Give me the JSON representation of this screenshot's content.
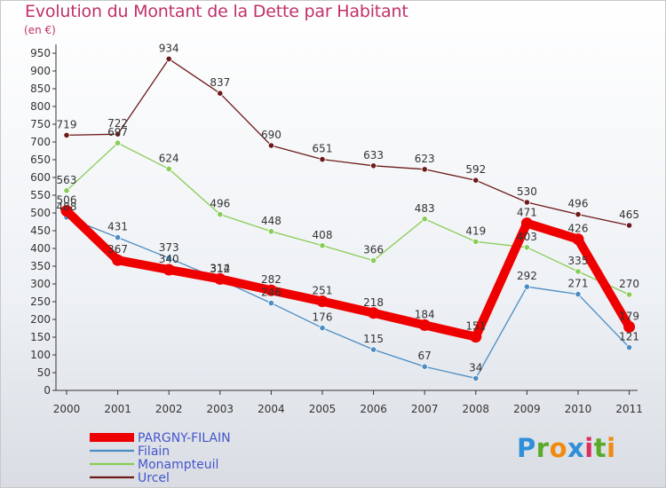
{
  "title": "Evolution du Montant de la Dette par Habitant",
  "unit_label": "(en €)",
  "logo": {
    "text": "Proxiti",
    "letters": [
      "P",
      "r",
      "o",
      "x",
      "i",
      "t",
      "i"
    ],
    "colors": [
      "#2f8fd8",
      "#5aaa2a",
      "#f08a10",
      "#2f8fd8",
      "#d93060",
      "#5aaa2a",
      "#f08a10"
    ]
  },
  "chart_data": {
    "type": "line",
    "title": "Evolution du Montant de la Dette par Habitant",
    "ylabel": "(en €)",
    "xlabel": "",
    "x": [
      "2000",
      "2001",
      "2002",
      "2003",
      "2004",
      "2005",
      "2006",
      "2007",
      "2008",
      "2009",
      "2010",
      "2011"
    ],
    "ylim": [
      0,
      950
    ],
    "yticks": [
      0,
      50,
      100,
      150,
      200,
      250,
      300,
      350,
      400,
      450,
      500,
      550,
      600,
      650,
      700,
      750,
      800,
      850,
      900,
      950
    ],
    "grid": false,
    "legend_position": "bottom-left",
    "series": [
      {
        "name": "Urcel",
        "color": "#6e1a1a",
        "values": [
          719,
          722,
          934,
          837,
          690,
          651,
          633,
          623,
          592,
          530,
          496,
          465
        ]
      },
      {
        "name": "Monampteuil",
        "color": "#88cc55",
        "values": [
          563,
          697,
          624,
          496,
          448,
          408,
          366,
          483,
          419,
          403,
          335,
          270
        ]
      },
      {
        "name": "Filain",
        "color": "#4a8cc4",
        "values": [
          488,
          431,
          373,
          312,
          246,
          176,
          115,
          67,
          34,
          292,
          271,
          121
        ]
      },
      {
        "name": "PARGNY-FILAIN",
        "color": "#ee0000",
        "values": [
          506,
          367,
          340,
          314,
          282,
          251,
          218,
          184,
          151,
          471,
          426,
          179
        ]
      }
    ]
  }
}
